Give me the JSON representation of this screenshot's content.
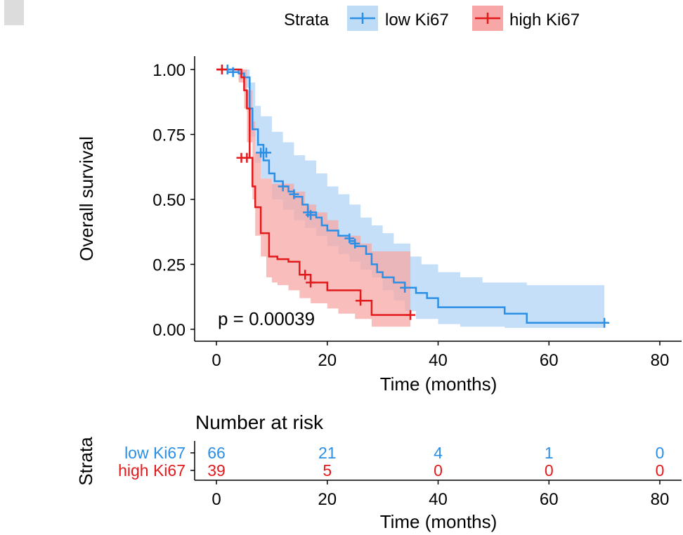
{
  "chart_data": {
    "type": "kaplan-meier",
    "legend": {
      "title": "Strata",
      "position": "top-right"
    },
    "xlabel": "Time  (months)",
    "ylabel": "Overall survival",
    "xlim": [
      0,
      80
    ],
    "ylim": [
      0,
      1
    ],
    "xticks": [
      "0",
      "20",
      "40",
      "60",
      "80"
    ],
    "yticks": [
      "0.00",
      "0.25",
      "0.50",
      "0.75",
      "1.00"
    ],
    "pvalue_text": "p = 0.00039",
    "series": [
      {
        "name": "low Ki67",
        "color": "#2b8fe6",
        "band_color": "#bfdcf7",
        "steps": [
          [
            0,
            1.0
          ],
          [
            4,
            0.985
          ],
          [
            5,
            0.97
          ],
          [
            6,
            0.85
          ],
          [
            6.5,
            0.77
          ],
          [
            7.5,
            0.71
          ],
          [
            8.5,
            0.65
          ],
          [
            9.5,
            0.6
          ],
          [
            10.5,
            0.57
          ],
          [
            12,
            0.55
          ],
          [
            13,
            0.53
          ],
          [
            14,
            0.51
          ],
          [
            15.5,
            0.48
          ],
          [
            16.5,
            0.45
          ],
          [
            18,
            0.43
          ],
          [
            19,
            0.4
          ],
          [
            20,
            0.38
          ],
          [
            22,
            0.36
          ],
          [
            24,
            0.34
          ],
          [
            25,
            0.32
          ],
          [
            27,
            0.29
          ],
          [
            28,
            0.25
          ],
          [
            29,
            0.22
          ],
          [
            30,
            0.2
          ],
          [
            32,
            0.18
          ],
          [
            34,
            0.16
          ],
          [
            36,
            0.14
          ],
          [
            38,
            0.12
          ],
          [
            40,
            0.085
          ],
          [
            52,
            0.06
          ],
          [
            56,
            0.025
          ],
          [
            70,
            0.025
          ]
        ],
        "upper": [
          [
            0,
            1.0
          ],
          [
            4,
            1.0
          ],
          [
            5,
            1.0
          ],
          [
            6,
            0.95
          ],
          [
            7,
            0.86
          ],
          [
            8,
            0.82
          ],
          [
            10,
            0.76
          ],
          [
            12,
            0.72
          ],
          [
            14,
            0.67
          ],
          [
            16,
            0.65
          ],
          [
            18,
            0.6
          ],
          [
            20,
            0.55
          ],
          [
            22,
            0.52
          ],
          [
            24,
            0.48
          ],
          [
            26,
            0.43
          ],
          [
            28,
            0.4
          ],
          [
            30,
            0.37
          ],
          [
            32,
            0.33
          ],
          [
            35,
            0.28
          ],
          [
            37,
            0.25
          ],
          [
            40,
            0.22
          ],
          [
            44,
            0.2
          ],
          [
            48,
            0.18
          ],
          [
            56,
            0.17
          ],
          [
            70,
            0.17
          ]
        ],
        "lower": [
          [
            0,
            1.0
          ],
          [
            4,
            0.96
          ],
          [
            5,
            0.93
          ],
          [
            6,
            0.74
          ],
          [
            7,
            0.64
          ],
          [
            8,
            0.58
          ],
          [
            10,
            0.5
          ],
          [
            12,
            0.46
          ],
          [
            14,
            0.42
          ],
          [
            16,
            0.39
          ],
          [
            18,
            0.36
          ],
          [
            20,
            0.32
          ],
          [
            22,
            0.29
          ],
          [
            24,
            0.26
          ],
          [
            26,
            0.23
          ],
          [
            28,
            0.2
          ],
          [
            30,
            0.15
          ],
          [
            32,
            0.11
          ],
          [
            34,
            0.07
          ],
          [
            36,
            0.04
          ],
          [
            40,
            0.02
          ],
          [
            44,
            0.01
          ],
          [
            52,
            0.005
          ],
          [
            70,
            0.0
          ]
        ],
        "censors": [
          [
            2,
            1.0
          ],
          [
            3,
            0.99
          ],
          [
            8,
            0.68
          ],
          [
            9,
            0.68
          ],
          [
            12,
            0.55
          ],
          [
            14,
            0.52
          ],
          [
            16.5,
            0.45
          ],
          [
            17,
            0.44
          ],
          [
            24,
            0.35
          ],
          [
            25,
            0.33
          ],
          [
            34,
            0.16
          ],
          [
            70,
            0.025
          ]
        ]
      },
      {
        "name": "high Ki67",
        "color": "#e31a1c",
        "band_color": "#f7a8a6",
        "steps": [
          [
            0,
            1.0
          ],
          [
            3.5,
            1.0
          ],
          [
            4.5,
            0.97
          ],
          [
            5,
            0.92
          ],
          [
            5.5,
            0.85
          ],
          [
            6,
            0.66
          ],
          [
            6.5,
            0.55
          ],
          [
            7,
            0.47
          ],
          [
            8,
            0.37
          ],
          [
            9.5,
            0.28
          ],
          [
            11,
            0.27
          ],
          [
            13,
            0.26
          ],
          [
            15,
            0.21
          ],
          [
            17,
            0.18
          ],
          [
            20,
            0.15
          ],
          [
            22.5,
            0.15
          ],
          [
            26,
            0.11
          ],
          [
            28,
            0.055
          ],
          [
            35,
            0.055
          ]
        ],
        "upper": [
          [
            0,
            1.0
          ],
          [
            4,
            1.0
          ],
          [
            5,
            1.0
          ],
          [
            5.5,
            0.92
          ],
          [
            6.5,
            0.8
          ],
          [
            7,
            0.68
          ],
          [
            8,
            0.58
          ],
          [
            10,
            0.56
          ],
          [
            14,
            0.53
          ],
          [
            16,
            0.48
          ],
          [
            18,
            0.45
          ],
          [
            20,
            0.42
          ],
          [
            22,
            0.36
          ],
          [
            26,
            0.33
          ],
          [
            28,
            0.3
          ],
          [
            35,
            0.3
          ]
        ],
        "lower": [
          [
            0,
            1.0
          ],
          [
            4,
            0.95
          ],
          [
            5,
            0.85
          ],
          [
            5.5,
            0.72
          ],
          [
            6.5,
            0.5
          ],
          [
            7,
            0.36
          ],
          [
            8,
            0.28
          ],
          [
            9,
            0.2
          ],
          [
            10,
            0.18
          ],
          [
            11,
            0.17
          ],
          [
            13,
            0.15
          ],
          [
            15,
            0.12
          ],
          [
            17,
            0.1
          ],
          [
            20,
            0.08
          ],
          [
            22,
            0.06
          ],
          [
            25,
            0.04
          ],
          [
            28,
            0.01
          ],
          [
            35,
            0.01
          ]
        ],
        "censors": [
          [
            1,
            1.0
          ],
          [
            4.5,
            0.66
          ],
          [
            5.5,
            0.66
          ],
          [
            16,
            0.21
          ],
          [
            17,
            0.18
          ],
          [
            26,
            0.11
          ],
          [
            35,
            0.055
          ]
        ]
      }
    ],
    "risk_table": {
      "title": "Number at risk",
      "ylabel": "Strata",
      "xlabel": "Time  (months)",
      "times": [
        "0",
        "20",
        "40",
        "60",
        "80"
      ],
      "rows": [
        {
          "name": "low Ki67",
          "color": "#2b8fe6",
          "counts": [
            "66",
            "21",
            "4",
            "1",
            "0"
          ]
        },
        {
          "name": "high Ki67",
          "color": "#e31a1c",
          "counts": [
            "39",
            "5",
            "0",
            "0",
            "0"
          ]
        }
      ]
    }
  }
}
